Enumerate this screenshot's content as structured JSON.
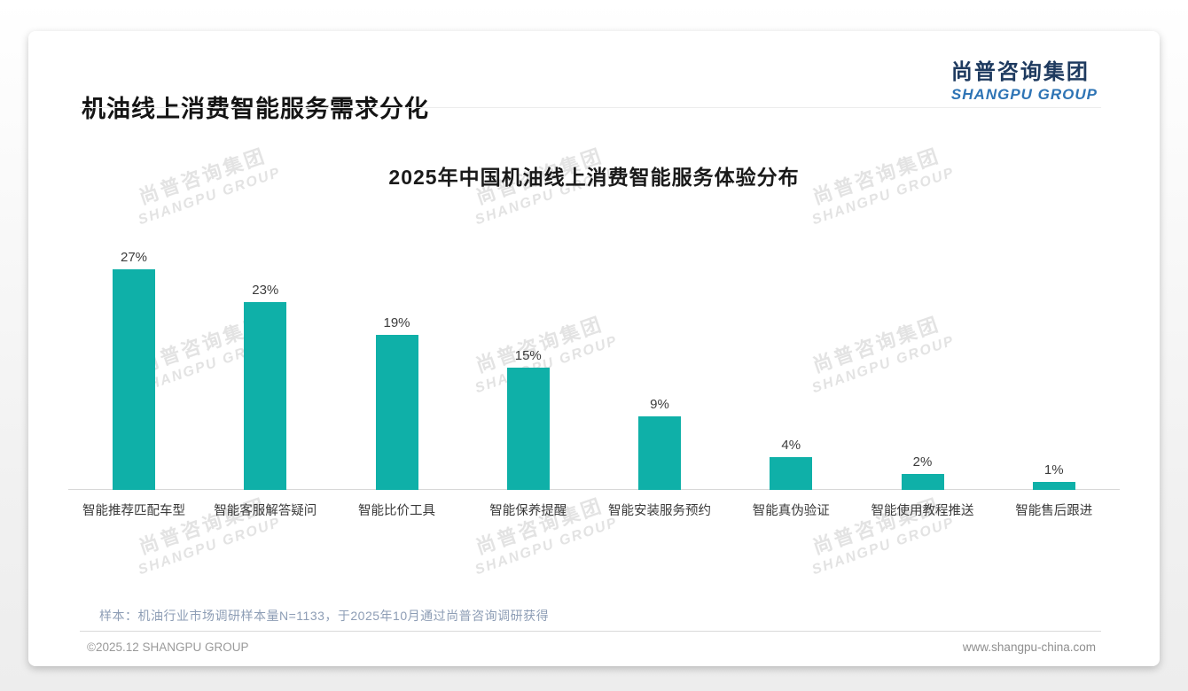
{
  "page": {
    "title": "机油线上消费智能服务需求分化",
    "logo": {
      "cn": "尚普咨询集团",
      "en": "SHANGPU GROUP"
    },
    "footnote": "样本：机油行业市场调研样本量N=1133，于2025年10月通过尚普咨询调研获得",
    "footer": {
      "left": "©2025.12 SHANGPU GROUP",
      "right": "www.shangpu-china.com"
    }
  },
  "watermark": {
    "cn": "尚普咨询集团",
    "en": "SHANGPU GROUP"
  },
  "colors": {
    "bar": "#0fb0a8",
    "logo_cn": "#1e3a5f",
    "logo_en": "#2e74b5",
    "watermark": "#e3e3e3",
    "axis": "#d8d8d8",
    "footnote": "#8d9db5"
  },
  "chart_data": {
    "type": "bar",
    "title": "2025年中国机油线上消费智能服务体验分布",
    "categories": [
      "智能推荐匹配车型",
      "智能客服解答疑问",
      "智能比价工具",
      "智能保养提醒",
      "智能安装服务预约",
      "智能真伪验证",
      "智能使用教程推送",
      "智能售后跟进"
    ],
    "values": [
      27,
      23,
      19,
      15,
      9,
      4,
      2,
      1
    ],
    "data_labels": [
      "27%",
      "23%",
      "19%",
      "15%",
      "9%",
      "4%",
      "2%",
      "1%"
    ],
    "unit": "%",
    "xlabel": "",
    "ylabel": "",
    "ylim": [
      0,
      30
    ],
    "grid": false,
    "legend": "none",
    "bar_color": "#0fb0a8"
  }
}
